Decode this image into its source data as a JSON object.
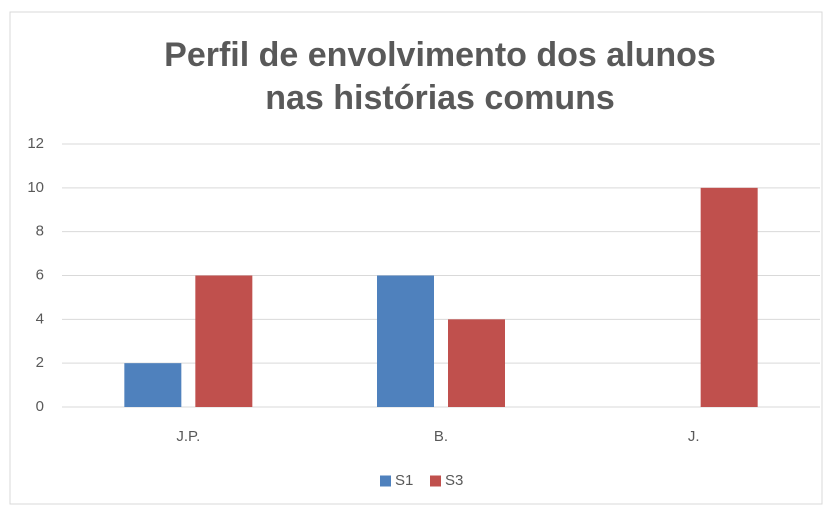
{
  "chart_data": {
    "type": "bar",
    "title": [
      "Perfil de envolvimento dos alunos",
      "nas histórias comuns"
    ],
    "categories": [
      "J.P.",
      "B.",
      "J."
    ],
    "series": [
      {
        "name": "S1",
        "color": "#4f81bd",
        "values": [
          2,
          6,
          0
        ]
      },
      {
        "name": "S3",
        "color": "#c0504d",
        "values": [
          6,
          4,
          10
        ]
      }
    ],
    "ylim": [
      0,
      12
    ],
    "yticks": [
      0,
      2,
      4,
      6,
      8,
      10,
      12
    ],
    "grid": true,
    "legend": "bottom"
  }
}
